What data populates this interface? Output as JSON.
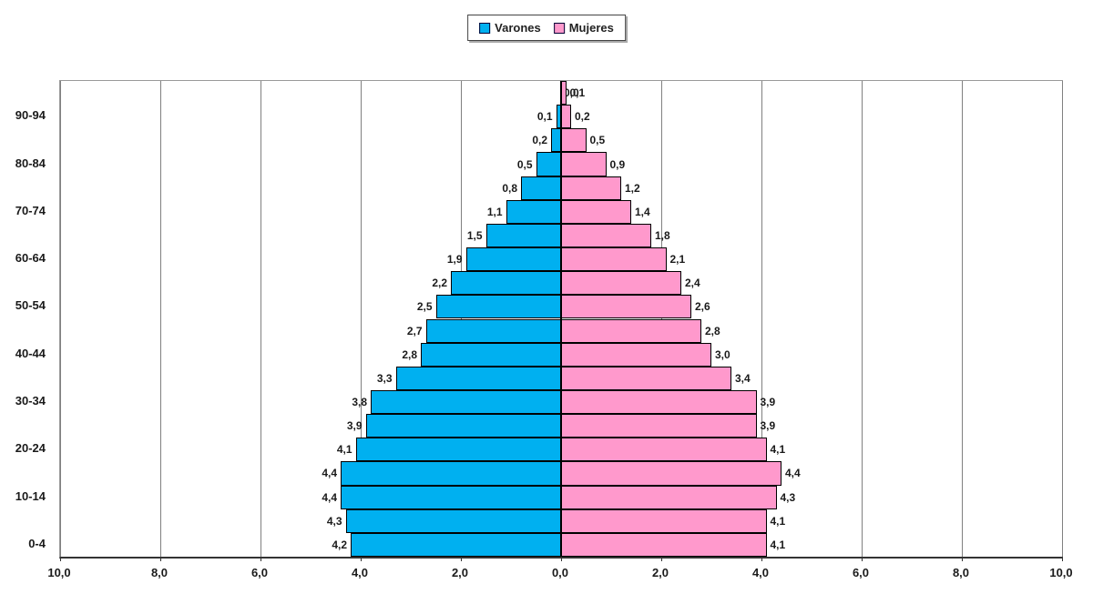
{
  "chart_data": {
    "type": "bar",
    "subtype": "population-pyramid",
    "orientation": "horizontal",
    "title": "",
    "legend_position": "top",
    "grid": true,
    "decimal_separator": ",",
    "age_groups": [
      "0-4",
      "5-9",
      "10-14",
      "15-19",
      "20-24",
      "25-29",
      "30-34",
      "35-39",
      "40-44",
      "45-49",
      "50-54",
      "55-59",
      "60-64",
      "65-69",
      "70-74",
      "75-79",
      "80-84",
      "85-89",
      "90-94",
      "95-99"
    ],
    "series": [
      {
        "name": "Varones",
        "side": "left",
        "color": "#00B0F0",
        "values": [
          4.2,
          4.3,
          4.4,
          4.4,
          4.1,
          3.9,
          3.8,
          3.3,
          2.8,
          2.7,
          2.5,
          2.2,
          1.9,
          1.5,
          1.1,
          0.8,
          0.5,
          0.2,
          0.1,
          0.0
        ]
      },
      {
        "name": "Mujeres",
        "side": "right",
        "color": "#FF99CC",
        "values": [
          4.1,
          4.1,
          4.3,
          4.4,
          4.1,
          3.9,
          3.9,
          3.4,
          3.0,
          2.8,
          2.6,
          2.4,
          2.1,
          1.8,
          1.4,
          1.2,
          0.9,
          0.5,
          0.2,
          0.1
        ]
      }
    ],
    "x_axis": {
      "tick_labels": [
        "10,0",
        "8,0",
        "6,0",
        "4,0",
        "2,0",
        "0,0",
        "2,0",
        "4,0",
        "6,0",
        "8,0",
        "10,0"
      ],
      "max_each_side": 10.0,
      "gridline_interval": 2.0
    },
    "y_axis": {
      "labeled_groups": [
        "0-4",
        "10-14",
        "20-24",
        "30-34",
        "40-44",
        "50-54",
        "60-64",
        "70-74",
        "80-84",
        "90-94"
      ]
    },
    "colors": {
      "bar_border": "#000000",
      "gridline": "#808080",
      "center_axis": "#000000",
      "plot_border": "#999999",
      "text": "#1a1a1a"
    }
  }
}
